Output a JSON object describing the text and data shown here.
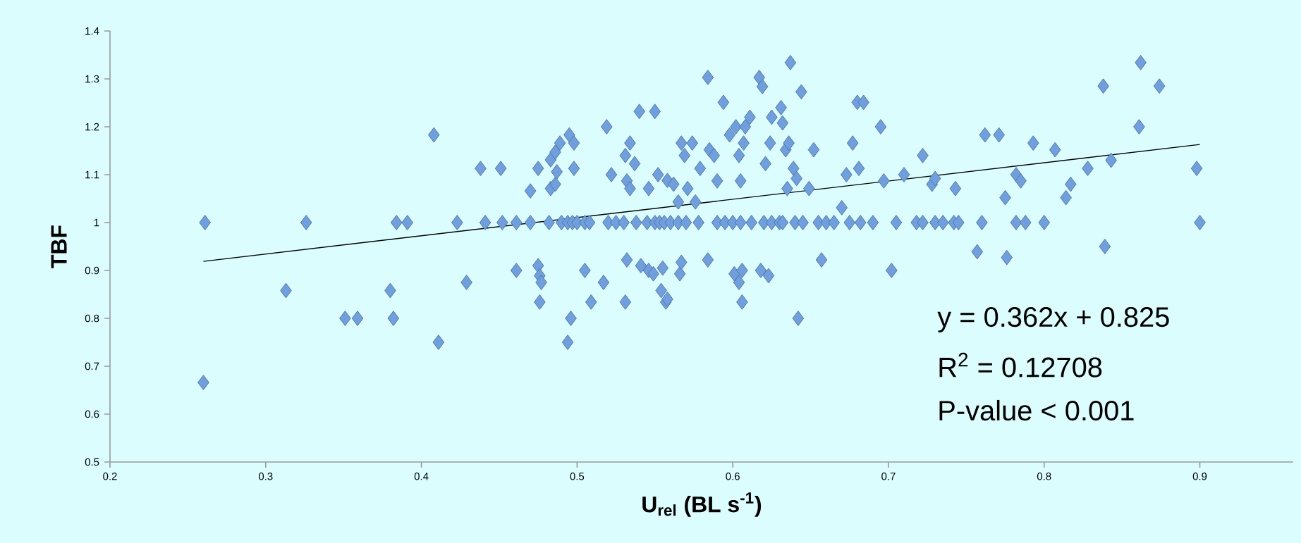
{
  "chart_data": {
    "type": "scatter",
    "xlabel": "U$_{rel}$ (BL s$^{-1}$)",
    "ylabel": "TBF",
    "xlim": [
      0.2,
      0.96
    ],
    "ylim": [
      0.5,
      1.4
    ],
    "xticks": [
      0.2,
      0.3,
      0.4,
      0.5,
      0.6,
      0.7,
      0.8,
      0.9
    ],
    "yticks": [
      0.5,
      0.6,
      0.7,
      0.8,
      0.9,
      1,
      1.1,
      1.2,
      1.3,
      1.4
    ],
    "marker": "diamond",
    "annotations": [
      "y = 0.362x + 0.825",
      "R$^{2}$ = 0.12708",
      "P-value < 0.001"
    ],
    "series": [
      {
        "color": "#6f9fdf",
        "x": [
          0.261,
          0.26,
          0.313,
          0.326,
          0.351,
          0.359,
          0.38,
          0.382,
          0.384,
          0.391,
          0.408,
          0.411,
          0.423,
          0.429,
          0.438,
          0.451,
          0.461,
          0.47,
          0.475,
          0.476,
          0.477,
          0.476,
          0.475,
          0.483,
          0.483,
          0.486,
          0.489,
          0.487,
          0.486,
          0.495,
          0.498,
          0.498,
          0.494,
          0.496,
          0.505,
          0.509,
          0.517,
          0.519,
          0.522,
          0.531,
          0.532,
          0.531,
          0.534,
          0.532,
          0.534,
          0.537,
          0.54,
          0.541,
          0.546,
          0.549,
          0.546,
          0.55,
          0.552,
          0.555,
          0.554,
          0.557,
          0.558,
          0.558,
          0.562,
          0.565,
          0.566,
          0.567,
          0.567,
          0.569,
          0.571,
          0.574,
          0.576,
          0.579,
          0.584,
          0.584,
          0.585,
          0.588,
          0.59,
          0.594,
          0.598,
          0.601,
          0.602,
          0.604,
          0.604,
          0.606,
          0.606,
          0.605,
          0.607,
          0.608,
          0.611,
          0.617,
          0.619,
          0.618,
          0.621,
          0.623,
          0.625,
          0.624,
          0.631,
          0.632,
          0.634,
          0.635,
          0.636,
          0.637,
          0.639,
          0.641,
          0.642,
          0.644,
          0.649,
          0.652,
          0.657,
          0.67,
          0.673,
          0.677,
          0.68,
          0.684,
          0.681,
          0.695,
          0.697,
          0.702,
          0.71,
          0.722,
          0.728,
          0.73,
          0.743,
          0.757,
          0.762,
          0.771,
          0.775,
          0.776,
          0.782,
          0.785,
          0.793,
          0.807,
          0.814,
          0.817,
          0.828,
          0.838,
          0.839,
          0.843,
          0.861,
          0.862,
          0.874,
          0.898,
          0.9,
          0.441,
          0.452,
          0.461,
          0.47,
          0.482,
          0.49,
          0.494,
          0.497,
          0.5,
          0.505,
          0.508,
          0.52,
          0.525,
          0.53,
          0.538,
          0.545,
          0.55,
          0.553,
          0.556,
          0.56,
          0.565,
          0.57,
          0.578,
          0.59,
          0.595,
          0.6,
          0.605,
          0.612,
          0.62,
          0.625,
          0.63,
          0.632,
          0.64,
          0.645,
          0.655,
          0.66,
          0.665,
          0.675,
          0.682,
          0.69,
          0.705,
          0.718,
          0.722,
          0.73,
          0.735,
          0.742,
          0.745,
          0.76,
          0.782,
          0.8,
          0.788
        ],
        "values": [
          1.0,
          0.666,
          0.858,
          1.0,
          0.8,
          0.8,
          0.858,
          0.8,
          1.0,
          1.0,
          1.183,
          0.75,
          1.0,
          0.875,
          1.113,
          1.113,
          0.9,
          1.066,
          0.91,
          0.889,
          0.875,
          0.834,
          1.113,
          1.071,
          1.131,
          1.147,
          1.166,
          1.106,
          1.08,
          1.183,
          1.166,
          1.113,
          0.75,
          0.8,
          0.9,
          0.834,
          0.875,
          1.2,
          1.1,
          0.834,
          0.922,
          1.14,
          1.166,
          1.087,
          1.071,
          1.123,
          1.232,
          0.91,
          0.9,
          0.893,
          1.071,
          1.232,
          1.1,
          0.905,
          0.858,
          0.834,
          0.84,
          1.088,
          1.08,
          1.043,
          0.893,
          0.917,
          1.166,
          1.14,
          1.071,
          1.166,
          1.043,
          1.113,
          0.922,
          1.303,
          1.152,
          1.14,
          1.087,
          1.251,
          1.183,
          0.893,
          1.2,
          1.14,
          0.875,
          0.9,
          0.834,
          1.087,
          1.166,
          1.2,
          1.22,
          1.303,
          1.284,
          0.9,
          1.123,
          0.889,
          1.22,
          1.166,
          1.24,
          1.208,
          1.152,
          1.071,
          1.166,
          1.334,
          1.113,
          1.092,
          0.8,
          1.273,
          1.071,
          1.152,
          0.922,
          1.031,
          1.1,
          1.166,
          1.251,
          1.251,
          1.113,
          1.2,
          1.087,
          0.9,
          1.1,
          1.14,
          1.08,
          1.092,
          1.071,
          0.939,
          1.183,
          1.183,
          1.052,
          0.927,
          1.1,
          1.087,
          1.166,
          1.152,
          1.052,
          1.08,
          1.113,
          1.285,
          0.95,
          1.13,
          1.2,
          1.334,
          1.285,
          1.113,
          1.0,
          1.0,
          1.0,
          1.0,
          1.0,
          1.0,
          1.0,
          1.0,
          1.0,
          1.0,
          1.0,
          1.0,
          1.0,
          1.0,
          1.0,
          1.0,
          1.0,
          1.0,
          1.0,
          1.0,
          1.0,
          1.0,
          1.0,
          1.0,
          1.0,
          1.0,
          1.0,
          1.0,
          1.0,
          1.0,
          1.0,
          1.0,
          1.0,
          1.0,
          1.0,
          1.0,
          1.0,
          1.0,
          1.0,
          1.0,
          1.0,
          1.0,
          1.0,
          1.0,
          1.0,
          1.0,
          1.0,
          1.0,
          1.0,
          1.0,
          1.0,
          1.0
        ]
      },
      {
        "type": "line",
        "color": "#000000",
        "marker": "none",
        "x": [
          0.26,
          0.9
        ],
        "values": [
          0.919,
          1.163
        ]
      }
    ]
  }
}
